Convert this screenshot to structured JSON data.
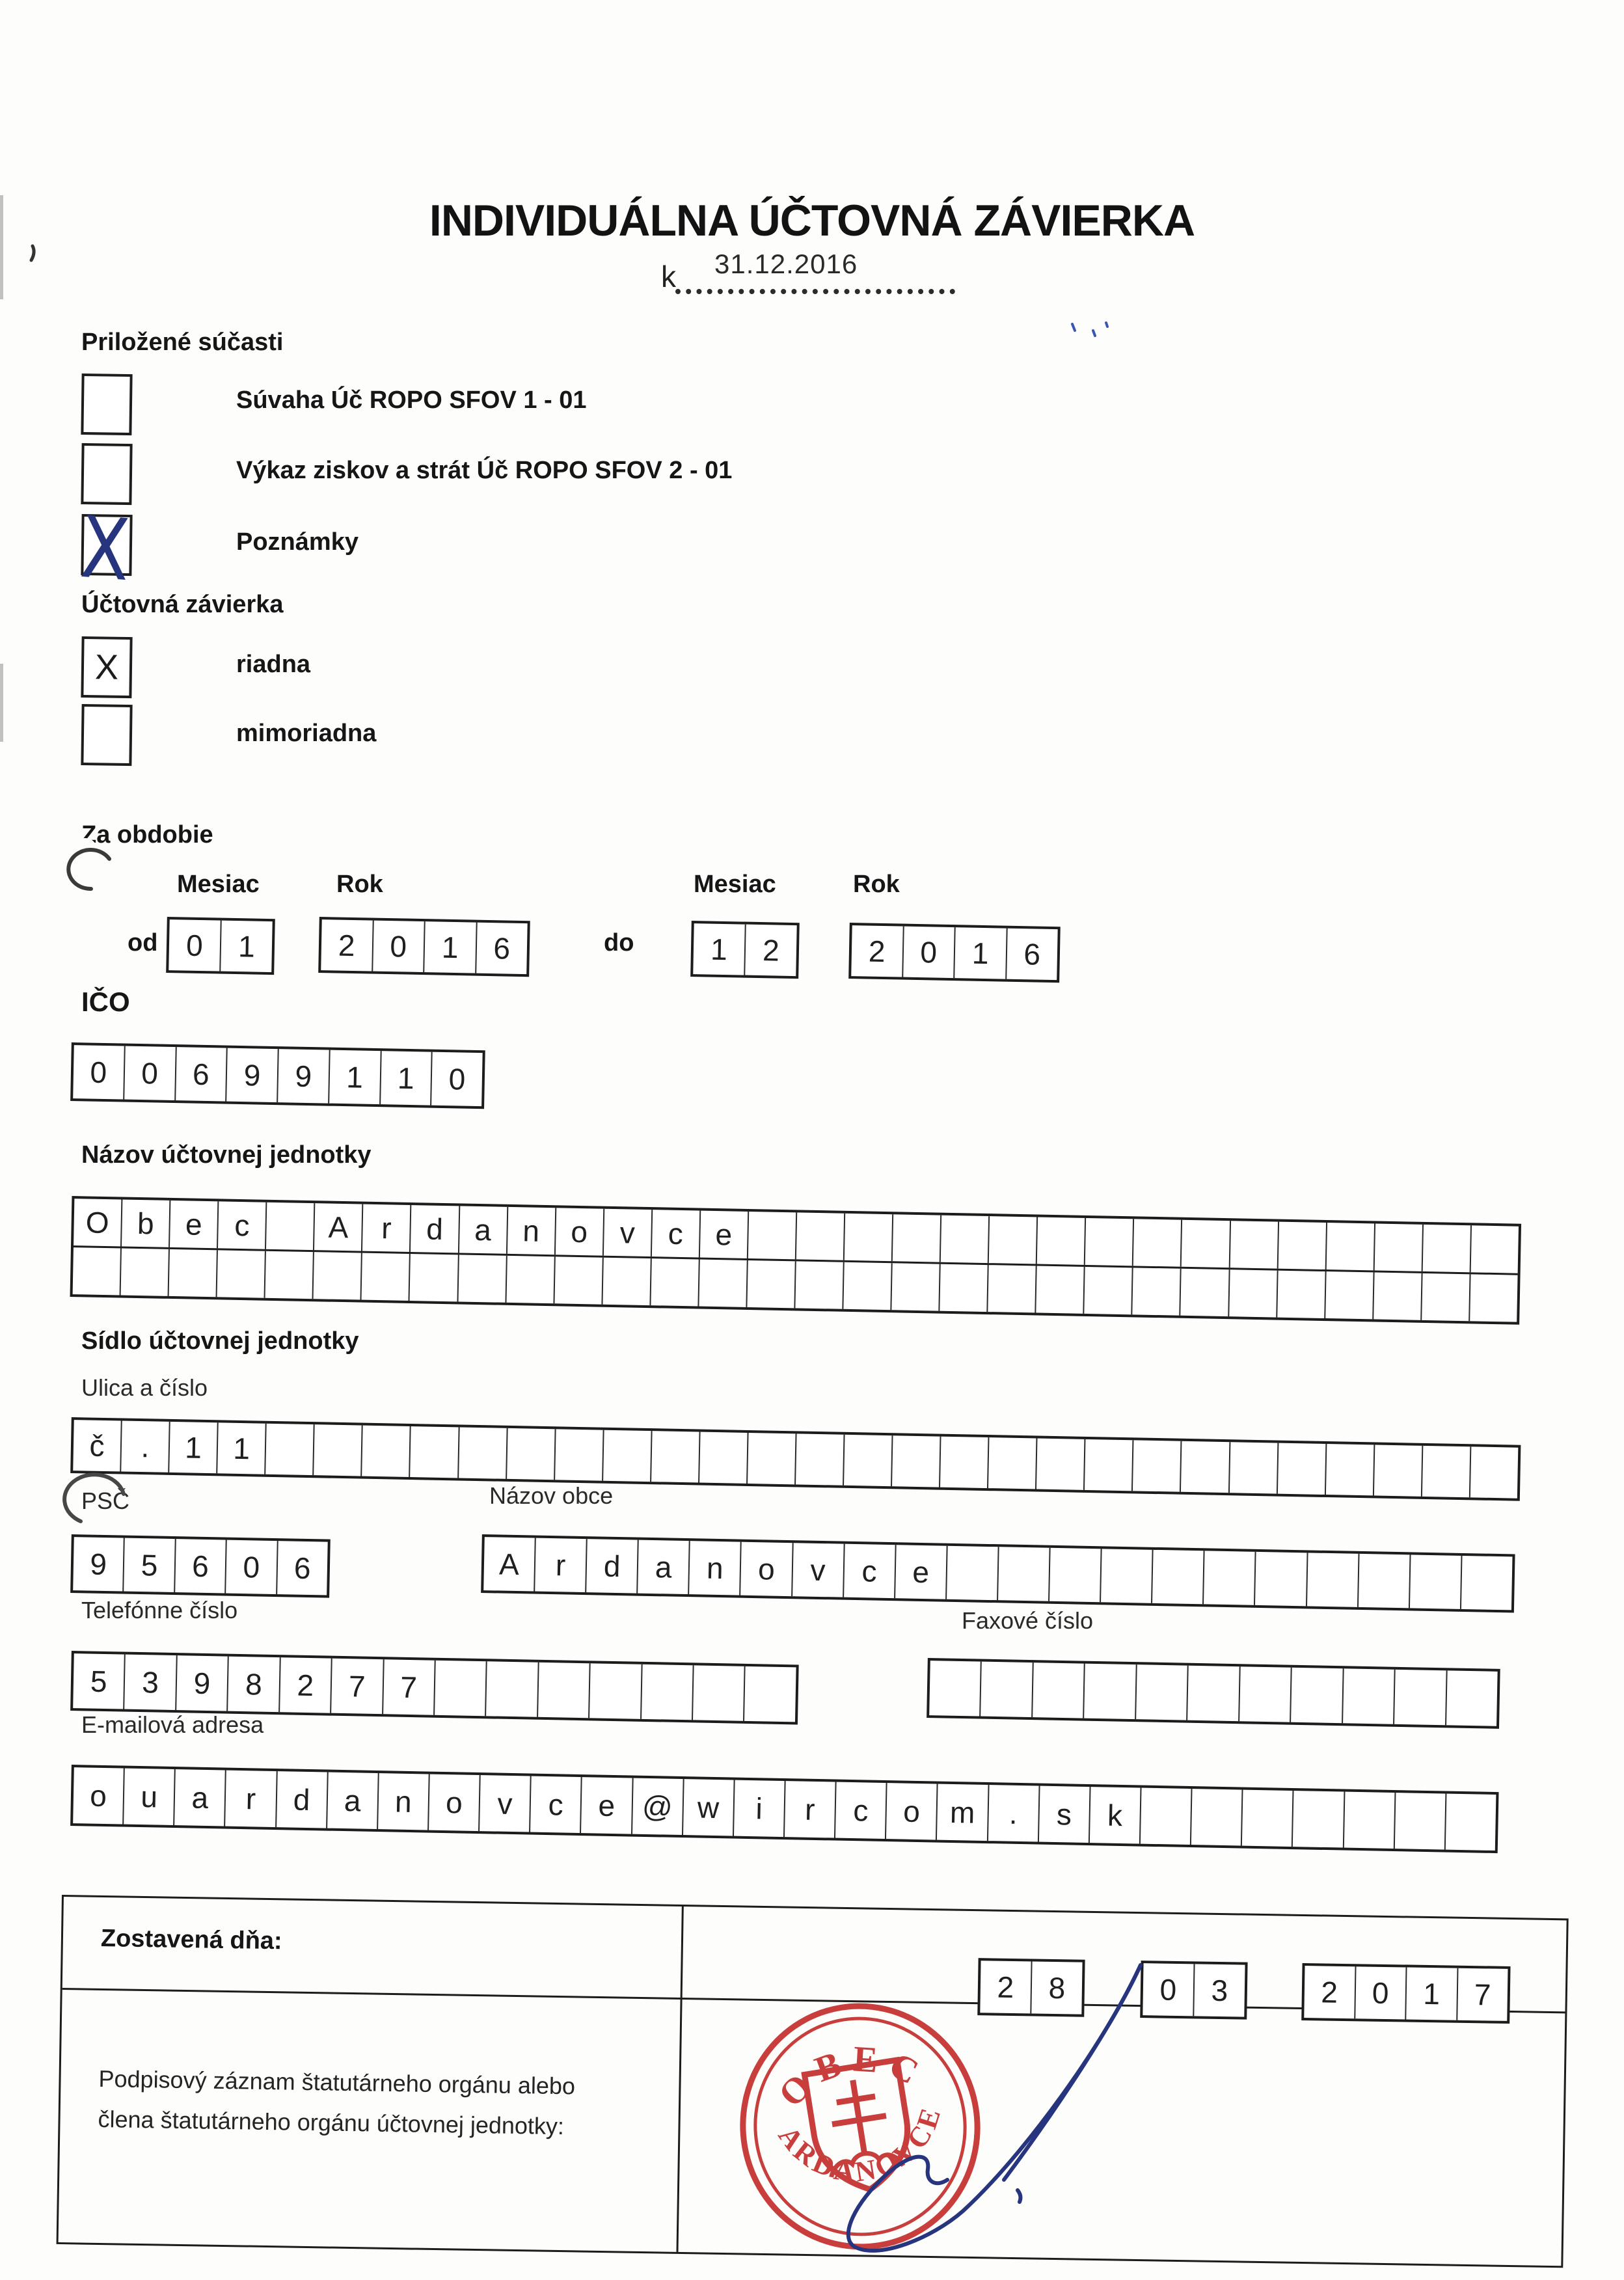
{
  "form": {
    "title": "INDIVIDUÁLNA ÚČTOVNÁ ZÁVIERKA",
    "as_of_prefix": "k",
    "as_of_date": "31.12.2016"
  },
  "attached": {
    "heading": "Priložené súčasti",
    "items": [
      {
        "label": "Súvaha Úč ROPO SFOV 1 - 01",
        "checked": false,
        "mark": ""
      },
      {
        "label": "Výkaz ziskov a strát Úč ROPO SFOV 2 - 01",
        "checked": false,
        "mark": ""
      },
      {
        "label": "Poznámky",
        "checked": true,
        "mark": "X"
      }
    ]
  },
  "closing": {
    "heading": "Účtovná závierka",
    "items": [
      {
        "label": "riadna",
        "checked": true,
        "mark": "X"
      },
      {
        "label": "mimoriadna",
        "checked": false,
        "mark": ""
      }
    ]
  },
  "period": {
    "heading": "Za obdobie",
    "month_label": "Mesiac",
    "year_label": "Rok",
    "from_label": "od",
    "to_label": "do",
    "from_month": "01",
    "from_year": "2016",
    "to_month": "12",
    "to_year": "2016"
  },
  "ico": {
    "label": "IČO",
    "value": "00699110"
  },
  "entity": {
    "name_label": "Názov účtovnej jednotky",
    "name_row1": "Obec Ardanovce",
    "name_row2": ""
  },
  "address": {
    "heading": "Sídlo účtovnej jednotky",
    "street_label": "Ulica a číslo",
    "street": "č.11",
    "zip_label": "PSČ",
    "zip": "95606",
    "town_label": "Názov obce",
    "town": "Ardanovce",
    "phone_label": "Telefónne číslo",
    "phone": "5398277",
    "fax_label": "Faxové číslo",
    "fax": "",
    "email_label": "E-mailová adresa",
    "email": "ouardanovce@wircom.sk"
  },
  "footer": {
    "prepared_label": "Zostavená dňa:",
    "prepared_day": "28",
    "prepared_month": "03",
    "prepared_year": "2017",
    "signature_label_line1": "Podpisový záznam štatutárneho orgánu alebo",
    "signature_label_line2": "člena štatutárneho orgánu účtovnej jednotky:",
    "stamp_top": "OBEC",
    "stamp_bottom": "ARDANOVCE"
  },
  "colors": {
    "ink": "#1a1a1a",
    "stamp_red": "#c5302e",
    "pen_blue": "#26357e"
  }
}
